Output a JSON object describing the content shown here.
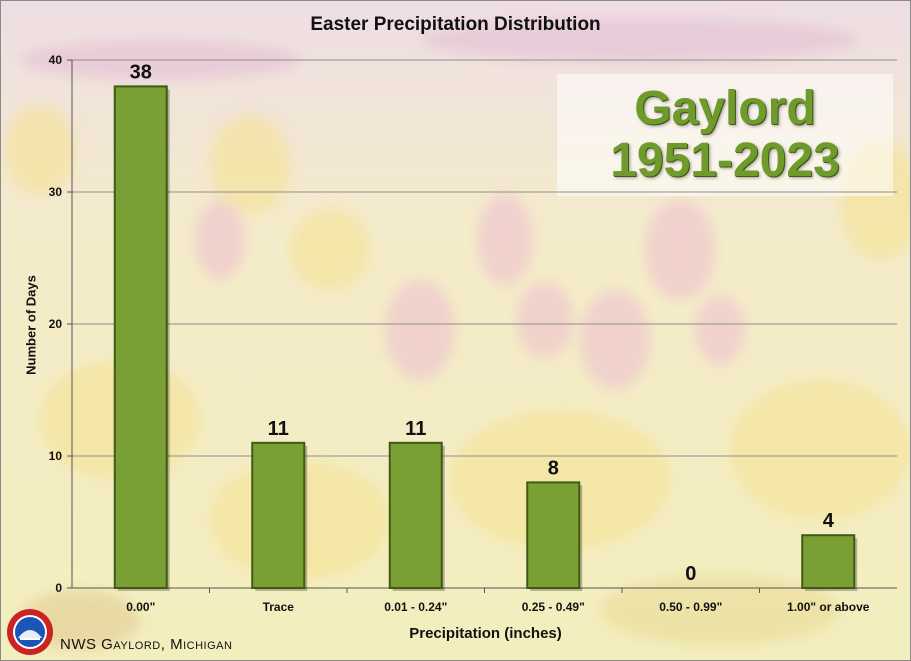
{
  "chart_data": {
    "type": "bar",
    "title": "Easter Precipitation Distribution",
    "xlabel": "Precipitation (inches)",
    "ylabel": "Number of Days",
    "categories": [
      "0.00\"",
      "Trace",
      "0.01 - 0.24\"",
      "0.25 - 0.49\"",
      "0.50 - 0.99\"",
      "1.00\" or above"
    ],
    "values": [
      38,
      11,
      11,
      8,
      0,
      4
    ],
    "ylim": [
      0,
      40
    ],
    "yticks": [
      0,
      10,
      20,
      30,
      40
    ],
    "grid": true,
    "bar_color": "#7a9f35",
    "bar_edge_color": "#3f5a14",
    "data_labels": true
  },
  "inset": {
    "line1": "Gaylord",
    "line2": "1951-2023"
  },
  "credit": "NWS Gaylord, Michigan",
  "logo_icon": "nws-logo-icon"
}
